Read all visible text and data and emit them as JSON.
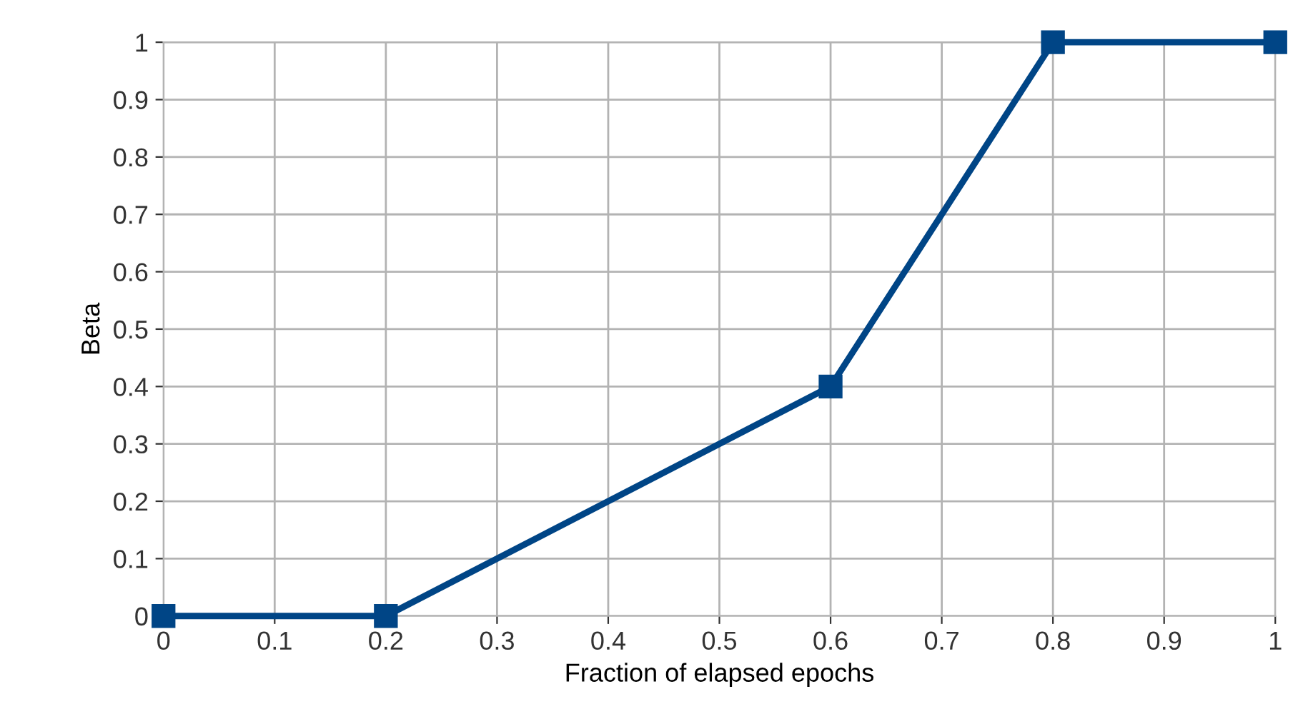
{
  "chart_data": {
    "type": "line",
    "xlabel": "Fraction of elapsed epochs",
    "ylabel": "Beta",
    "x": [
      0,
      0.2,
      0.6,
      0.8,
      1
    ],
    "series": [
      {
        "color": "#004586",
        "values": [
          0,
          0,
          0.4,
          1,
          1
        ]
      }
    ],
    "xlim": [
      0,
      1
    ],
    "ylim": [
      0,
      1
    ],
    "xticks": [
      0,
      0.1,
      0.2,
      0.3,
      0.4,
      0.5,
      0.6,
      0.7,
      0.8,
      0.9,
      1
    ],
    "yticks": [
      0,
      0.1,
      0.2,
      0.3,
      0.4,
      0.5,
      0.6,
      0.7,
      0.8,
      0.9,
      1
    ],
    "grid": true,
    "marker": "square",
    "line_style": "solid"
  }
}
